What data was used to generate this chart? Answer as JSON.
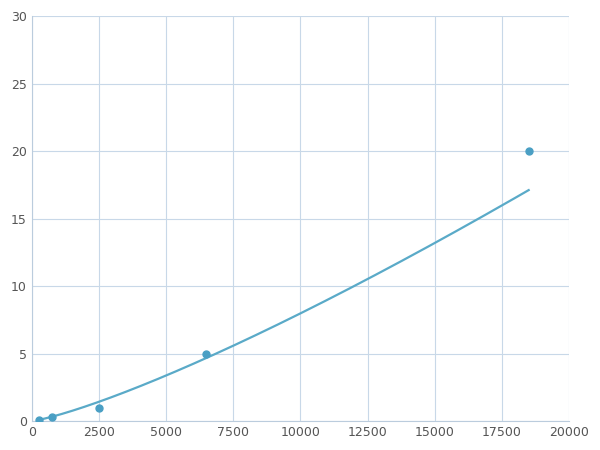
{
  "x_points": [
    250,
    750,
    2500,
    6500,
    18500
  ],
  "y_points": [
    0.1,
    0.3,
    1.0,
    5.0,
    20.0
  ],
  "line_color": "#5aaac8",
  "marker_color": "#4a9fc4",
  "marker_size": 5,
  "line_width": 1.6,
  "xlim": [
    0,
    20000
  ],
  "ylim": [
    0,
    30
  ],
  "xticks": [
    0,
    2500,
    5000,
    7500,
    10000,
    12500,
    15000,
    17500,
    20000
  ],
  "yticks": [
    0,
    5,
    10,
    15,
    20,
    25,
    30
  ],
  "xtick_labels": [
    "0",
    "2500",
    "5000",
    "7500",
    "10000",
    "12500",
    "15000",
    "17500",
    "20000"
  ],
  "ytick_labels": [
    "0",
    "5",
    "10",
    "15",
    "20",
    "25",
    "30"
  ],
  "grid_color": "#c8d8e8",
  "background_color": "#ffffff",
  "tick_fontsize": 9
}
